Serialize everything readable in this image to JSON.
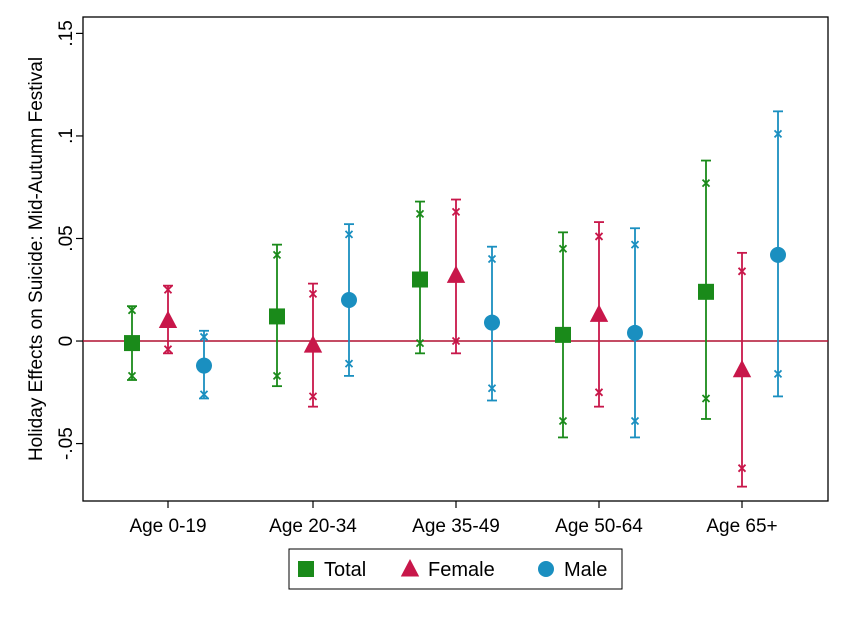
{
  "chart_data": {
    "type": "scatter",
    "title": "",
    "xlabel": "",
    "ylabel": "Holiday Effects on Suicide: Mid-Autumn Festival",
    "categories": [
      "Age 0-19",
      "Age 20-34",
      "Age 35-49",
      "Age 50-64",
      "Age 65+"
    ],
    "ylim": [
      -0.078,
      0.158
    ],
    "yticks": [
      -0.05,
      0,
      0.05,
      0.1,
      0.15
    ],
    "ytick_labels": [
      "-.05",
      "0",
      ".05",
      ".1",
      ".15"
    ],
    "reference_line": 0,
    "grid": false,
    "legend_position": "bottom",
    "series": [
      {
        "name": "Total",
        "marker": "square",
        "color": "#1a8a1a",
        "values": [
          -0.001,
          0.012,
          0.03,
          0.003,
          0.024
        ],
        "ci95": [
          [
            -0.019,
            0.017
          ],
          [
            -0.022,
            0.047
          ],
          [
            -0.006,
            0.068
          ],
          [
            -0.047,
            0.053
          ],
          [
            -0.038,
            0.088
          ]
        ],
        "ci90": [
          [
            -0.017,
            0.015
          ],
          [
            -0.017,
            0.042
          ],
          [
            -0.001,
            0.062
          ],
          [
            -0.039,
            0.045
          ],
          [
            -0.028,
            0.077
          ]
        ]
      },
      {
        "name": "Female",
        "marker": "triangle",
        "color": "#c8174a",
        "values": [
          0.01,
          -0.002,
          0.032,
          0.013,
          -0.014
        ],
        "ci95": [
          [
            -0.006,
            0.027
          ],
          [
            -0.032,
            0.028
          ],
          [
            -0.006,
            0.069
          ],
          [
            -0.032,
            0.058
          ],
          [
            -0.071,
            0.043
          ]
        ],
        "ci90": [
          [
            -0.004,
            0.025
          ],
          [
            -0.027,
            0.023
          ],
          [
            0.0,
            0.063
          ],
          [
            -0.025,
            0.051
          ],
          [
            -0.062,
            0.034
          ]
        ]
      },
      {
        "name": "Male",
        "marker": "circle",
        "color": "#1a8fc0",
        "values": [
          -0.012,
          0.02,
          0.009,
          0.004,
          0.042
        ],
        "ci95": [
          [
            -0.028,
            0.005
          ],
          [
            -0.017,
            0.057
          ],
          [
            -0.029,
            0.046
          ],
          [
            -0.047,
            0.055
          ],
          [
            -0.027,
            0.112
          ]
        ],
        "ci90": [
          [
            -0.026,
            0.002
          ],
          [
            -0.011,
            0.052
          ],
          [
            -0.023,
            0.04
          ],
          [
            -0.039,
            0.047
          ],
          [
            -0.016,
            0.101
          ]
        ]
      }
    ]
  },
  "colors": {
    "reference_line": "#b01030",
    "axis": "#000000"
  }
}
